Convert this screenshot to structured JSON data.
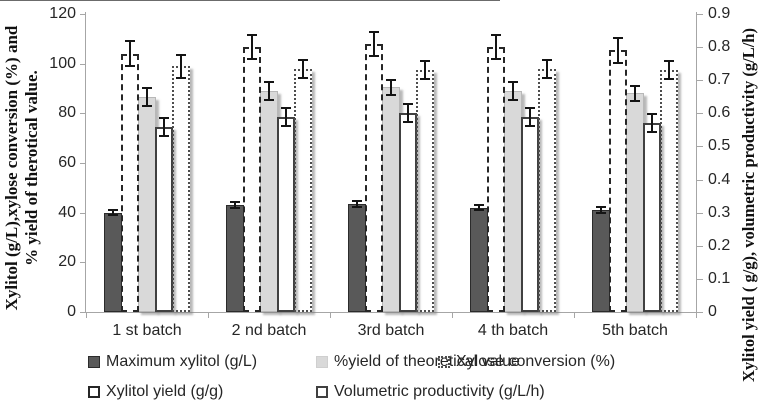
{
  "figure": {
    "left_axis_title_line1": "Xylitol (g/L),xylose conversion (%) and",
    "left_axis_title_line2": "% yield of therotical value.",
    "right_axis_title": "Xylitol yield ( g/g), volumetric productivity (g/L/h)"
  },
  "chart_data": {
    "type": "bar",
    "title": "",
    "categories": [
      "1 st batch",
      "2 nd batch",
      "3rd batch",
      "4 th batch",
      "5th batch"
    ],
    "left_axis": {
      "title": "Xylitol (g/L),xylose conversion (%) and % yield of therotical value.",
      "range": [
        0,
        120
      ],
      "ticks": [
        0,
        20,
        40,
        60,
        80,
        100,
        120
      ]
    },
    "right_axis": {
      "title": "Xylitol yield ( g/g), volumetric productivity (g/L/h)",
      "range": [
        0,
        0.9
      ],
      "ticks": [
        0,
        0.1,
        0.2,
        0.3,
        0.4,
        0.5,
        0.6,
        0.7,
        0.8,
        0.9
      ]
    },
    "grid": "off",
    "legend_position": "bottom",
    "series": [
      {
        "name": "Maximum xylitol (g/L)",
        "axis": "left",
        "style": "solid-dark",
        "color": "#595959",
        "values": [
          40,
          43,
          43.5,
          42,
          41
        ],
        "errors": [
          1.5,
          1.5,
          1.5,
          1.5,
          1.5
        ]
      },
      {
        "name": "Xylitol yield (g/g)",
        "axis": "right",
        "style": "dashed-outline",
        "color": "#262626",
        "values": [
          0.78,
          0.8,
          0.81,
          0.8,
          0.79
        ],
        "errors": [
          0.04,
          0.04,
          0.04,
          0.04,
          0.04
        ]
      },
      {
        "name": "%yield of theoretical value",
        "axis": "left",
        "style": "solid-light",
        "color": "#d9d9d9",
        "values": [
          86.5,
          89,
          90.5,
          89,
          88
        ],
        "errors": [
          4,
          4,
          3.5,
          4,
          3.5
        ]
      },
      {
        "name": "Volumetric productivity (g/L/h)",
        "axis": "right",
        "style": "solid-outline",
        "color": "#ffffff",
        "values": [
          0.56,
          0.59,
          0.6,
          0.59,
          0.57
        ],
        "errors": [
          0.03,
          0.03,
          0.03,
          0.03,
          0.03
        ]
      },
      {
        "name": "Xylose conversion (%)",
        "axis": "left",
        "style": "dotted-outline",
        "color": "#4d4d4d",
        "values": [
          99,
          98,
          97.5,
          98,
          97.5
        ],
        "errors": [
          5,
          4,
          4,
          4,
          4
        ]
      }
    ],
    "legend_rows": [
      [
        0,
        2,
        4
      ],
      [
        1,
        3
      ]
    ]
  }
}
